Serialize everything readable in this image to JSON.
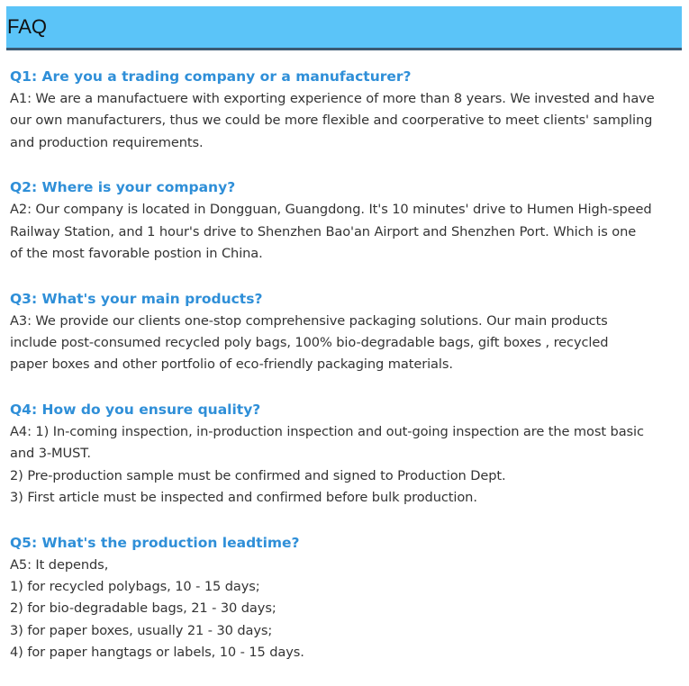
{
  "header": {
    "title": "FAQ"
  },
  "faqs": [
    {
      "question": "Q1: Are you a trading company or a manufacturer?",
      "answer_lines": [
        "A1: We are a manufactuere with exporting experience of more than 8 years. We invested and have",
        "our own manufacturers, thus we could be more flexible and coorperative to meet clients' sampling",
        "and production requirements."
      ]
    },
    {
      "question": "Q2: Where is your company?",
      "answer_lines": [
        "A2: Our company is located in Dongguan, Guangdong. It's 10 minutes' drive to Humen High-speed",
        "Railway Station, and 1 hour's drive to Shenzhen Bao'an Airport and Shenzhen Port. Which is one",
        "of the most favorable postion in China."
      ]
    },
    {
      "question": "Q3: What's your main products?",
      "answer_lines": [
        "A3: We provide our clients one-stop comprehensive packaging solutions. Our main products",
        "include post-consumed recycled poly bags, 100% bio-degradable bags, gift boxes , recycled",
        "paper boxes and other portfolio of eco-friendly packaging materials."
      ]
    },
    {
      "question": "Q4: How do you ensure quality?",
      "answer_lines": [
        "A4: 1) In-coming inspection, in-production inspection and out-going inspection are the most basic",
        "and 3-MUST.",
        "2) Pre-production sample must be confirmed and signed to Production Dept.",
        "3) First article must be inspected and confirmed before bulk production."
      ]
    },
    {
      "question": "Q5: What's the production leadtime?",
      "answer_lines": [
        "A5: It depends,",
        "1) for recycled polybags, 10 - 15 days;",
        "2) for bio-degradable bags, 21 - 30 days;",
        "3) for paper boxes, usually 21 - 30 days;",
        "4) for paper hangtags or labels, 10 - 15 days."
      ]
    }
  ]
}
